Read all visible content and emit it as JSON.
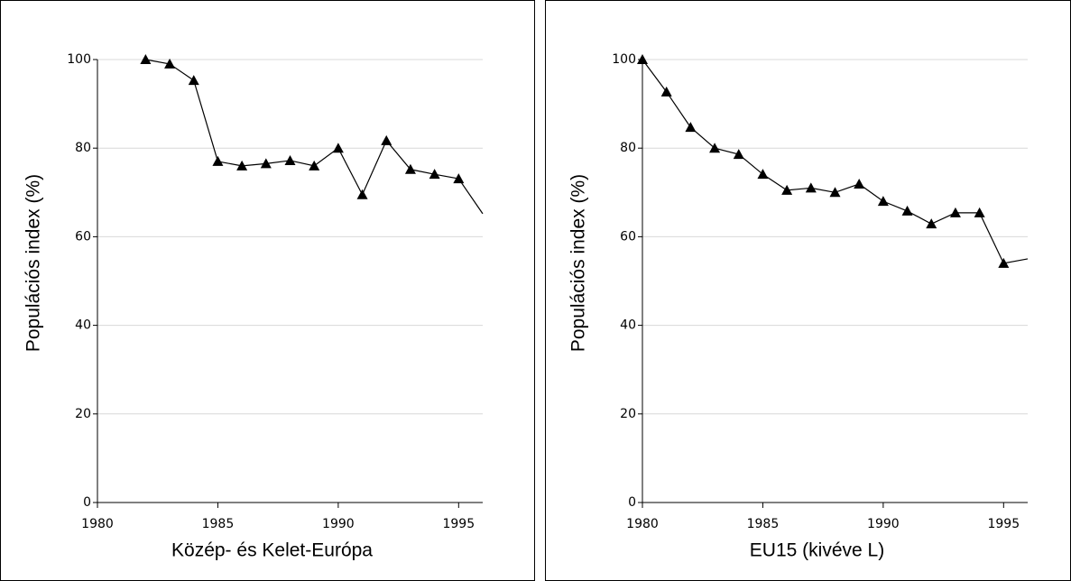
{
  "chart_data": [
    {
      "type": "line",
      "xlabel": "Közép- és Kelet-Európa",
      "ylabel": "Populációs index (%)",
      "x": [
        1982,
        1983,
        1984,
        1985,
        1986,
        1987,
        1988,
        1989,
        1990,
        1991,
        1992,
        1993,
        1994,
        1995,
        1996
      ],
      "values": [
        100,
        99,
        95.3,
        77,
        76,
        76.5,
        77.2,
        76,
        80,
        69.5,
        81.7,
        75.2,
        74.1,
        73.1,
        65.2
      ],
      "color": "#000000",
      "xlim": [
        1980,
        1996
      ],
      "ylim": [
        0,
        100
      ],
      "xticks": [
        1980,
        1985,
        1990,
        1995
      ],
      "yticks": [
        0,
        20,
        40,
        60,
        80,
        100
      ],
      "grid": true
    },
    {
      "type": "line",
      "xlabel": "EU15 (kivéve L)",
      "ylabel": "Populációs index (%)",
      "x": [
        1980,
        1981,
        1982,
        1983,
        1984,
        1985,
        1986,
        1987,
        1988,
        1989,
        1990,
        1991,
        1992,
        1993,
        1994,
        1995,
        1996
      ],
      "values": [
        100,
        92.7,
        84.7,
        80,
        78.6,
        74.1,
        70.5,
        71,
        70,
        71.9,
        68,
        65.8,
        62.9,
        65.4,
        65.4,
        54,
        55
      ],
      "color": "#000000",
      "xlim": [
        1980,
        1996
      ],
      "ylim": [
        0,
        100
      ],
      "xticks": [
        1980,
        1985,
        1990,
        1995
      ],
      "yticks": [
        0,
        20,
        40,
        60,
        80,
        100
      ],
      "grid": true
    }
  ]
}
